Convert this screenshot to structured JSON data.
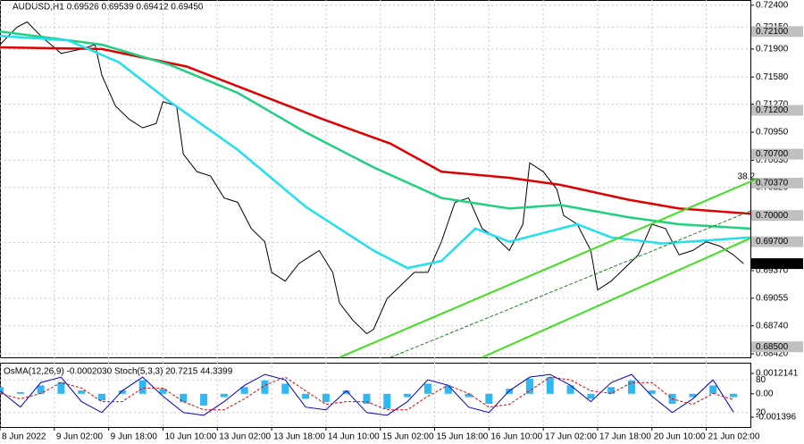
{
  "chart_data": [
    {
      "type": "line",
      "title": "AUDUSD,H1  0.69526 0.69539 0.69412 0.69450",
      "annotation": "38.2",
      "xlim": [
        0,
        221
      ],
      "ylim": [
        0.7246,
        0.6838
      ],
      "grid": true,
      "xticks": [
        {
          "value": 0,
          "label": "8 Jun 2022"
        },
        {
          "value": 16,
          "label": "9 Jun 02:00"
        },
        {
          "value": 32,
          "label": "9 Jun 18:00"
        },
        {
          "value": 48,
          "label": "10 Jun 10:00"
        },
        {
          "value": 64,
          "label": "13 Jun 02:00"
        },
        {
          "value": 80,
          "label": "13 Jun 18:00"
        },
        {
          "value": 96,
          "label": "14 Jun 10:00"
        },
        {
          "value": 112,
          "label": "15 Jun 02:00"
        },
        {
          "value": 128,
          "label": "15 Jun 18:00"
        },
        {
          "value": 144,
          "label": "16 Jun 10:00"
        },
        {
          "value": 160,
          "label": "17 Jun 02:00"
        },
        {
          "value": 176,
          "label": "17 Jun 18:00"
        },
        {
          "value": 192,
          "label": "20 Jun 10:00"
        },
        {
          "value": 208,
          "label": "21 Jun 02:00"
        }
      ],
      "yticks": [
        {
          "value": 0.724,
          "label": "0.72400"
        },
        {
          "value": 0.7215,
          "label": "0.72150"
        },
        {
          "value": 0.719,
          "label": "0.71900"
        },
        {
          "value": 0.7158,
          "label": "0.71580"
        },
        {
          "value": 0.7127,
          "label": "0.71270"
        },
        {
          "value": 0.7095,
          "label": "0.70950"
        },
        {
          "value": 0.7063,
          "label": "0.70630"
        },
        {
          "value": 0.7032,
          "label": "0.70320"
        },
        {
          "value": 0.6969,
          "label": "0.69690"
        },
        {
          "value": 0.6937,
          "label": "0.69370"
        },
        {
          "value": 0.69055,
          "label": "0.69055"
        },
        {
          "value": 0.6874,
          "label": "0.68740"
        },
        {
          "value": 0.6842,
          "label": "0.68420"
        }
      ],
      "levels": [
        {
          "value": 0.721,
          "label": "0.72100"
        },
        {
          "value": 0.712,
          "label": "0.71200"
        },
        {
          "value": 0.707,
          "label": "0.70700"
        },
        {
          "value": 0.7037,
          "label": "0.70370"
        },
        {
          "value": 0.7,
          "label": "0.70000"
        },
        {
          "value": 0.697,
          "label": "0.69700"
        },
        {
          "value": 0.685,
          "label": "0.68500"
        }
      ],
      "last_price": {
        "value": 0.6945,
        "label": "0.69450"
      },
      "series": [
        {
          "name": "AUDUSD",
          "color": "#000000",
          "x": [
            0,
            5,
            8,
            12,
            18,
            24,
            28,
            30,
            34,
            38,
            42,
            46,
            48,
            52,
            54,
            58,
            62,
            66,
            70,
            74,
            78,
            80,
            84,
            88,
            92,
            94,
            98,
            100,
            104,
            108,
            110,
            114,
            118,
            122,
            126,
            130,
            134,
            138,
            142,
            146,
            150,
            154,
            156,
            160,
            164,
            166,
            170,
            174,
            176,
            180,
            184,
            188,
            192,
            196,
            200,
            204,
            208,
            212,
            216,
            219
          ],
          "values": [
            0.7195,
            0.7215,
            0.7221,
            0.7205,
            0.7185,
            0.719,
            0.7195,
            0.716,
            0.7125,
            0.711,
            0.71,
            0.7105,
            0.713,
            0.7125,
            0.707,
            0.705,
            0.7045,
            0.702,
            0.7015,
            0.6985,
            0.697,
            0.6935,
            0.6925,
            0.6945,
            0.6955,
            0.696,
            0.6935,
            0.69,
            0.688,
            0.6865,
            0.687,
            0.6905,
            0.692,
            0.6935,
            0.6935,
            0.697,
            0.7015,
            0.702,
            0.6985,
            0.6975,
            0.696,
            0.699,
            0.706,
            0.705,
            0.703,
            0.7,
            0.699,
            0.696,
            0.6915,
            0.6925,
            0.694,
            0.6955,
            0.699,
            0.6985,
            0.6955,
            0.696,
            0.697,
            0.6965,
            0.6955,
            0.6945
          ]
        },
        {
          "name": "MA200",
          "color": "#e00000",
          "x": [
            0,
            30,
            55,
            75,
            95,
            115,
            130,
            150,
            165,
            185,
            200,
            221
          ],
          "values": [
            0.7192,
            0.719,
            0.717,
            0.714,
            0.711,
            0.7082,
            0.705,
            0.7043,
            0.7035,
            0.7018,
            0.7008,
            0.7002
          ]
        },
        {
          "name": "MA144",
          "color": "#20d080",
          "x": [
            0,
            30,
            50,
            70,
            90,
            110,
            130,
            150,
            165,
            185,
            200,
            221
          ],
          "values": [
            0.721,
            0.7195,
            0.7172,
            0.714,
            0.7095,
            0.7055,
            0.702,
            0.7008,
            0.7012,
            0.6998,
            0.699,
            0.6985
          ]
        },
        {
          "name": "MA50",
          "color": "#20e0f0",
          "x": [
            0,
            20,
            35,
            50,
            70,
            90,
            110,
            120,
            130,
            140,
            150,
            160,
            170,
            180,
            195,
            210,
            221
          ],
          "values": [
            0.7205,
            0.72,
            0.7175,
            0.713,
            0.7075,
            0.701,
            0.696,
            0.694,
            0.6948,
            0.6985,
            0.697,
            0.698,
            0.699,
            0.6975,
            0.6968,
            0.6972,
            0.6975
          ]
        },
        {
          "name": "channel-top",
          "color": "#40e020",
          "x": [
            100,
            223
          ],
          "values": [
            0.6838,
            0.7042
          ]
        },
        {
          "name": "channel-mid",
          "color": "#208020",
          "x": [
            115,
            221
          ],
          "values": [
            0.6838,
            0.7005
          ]
        },
        {
          "name": "channel-bottom",
          "color": "#40e020",
          "x": [
            142,
            221
          ],
          "values": [
            0.6838,
            0.6974
          ]
        }
      ]
    },
    {
      "type": "combo",
      "title": "OsMA(12,26,9) -0.0002030  Stoch(5,3,3) 20.7215 44.3399",
      "xlim": [
        0,
        221
      ],
      "ylim": [
        -0.001396,
        0.0012141
      ],
      "y2lim": [
        0,
        100
      ],
      "yticks": [
        {
          "value": 0.0012141,
          "label": "0.0012141"
        },
        {
          "value": 0,
          "label": "0.00"
        },
        {
          "value": -0.001396,
          "label": "-0.001396"
        }
      ],
      "y2ticks": [
        80,
        20
      ],
      "x": [
        0,
        6,
        12,
        18,
        24,
        30,
        36,
        42,
        48,
        54,
        60,
        66,
        72,
        78,
        84,
        90,
        96,
        102,
        108,
        114,
        120,
        126,
        132,
        138,
        144,
        150,
        156,
        162,
        168,
        174,
        180,
        186,
        192,
        198,
        204,
        210,
        216
      ],
      "series": [
        {
          "name": "OsMA",
          "color": "#30b8f0",
          "values": [
            0.0004,
            0.0001,
            0.0005,
            0.0007,
            0.0002,
            -0.0004,
            0.0002,
            0.0008,
            0.0003,
            -0.0005,
            -0.0007,
            -0.0002,
            0.0004,
            0.0008,
            0.0006,
            -0.0003,
            -0.0005,
            0.0002,
            -0.0006,
            -0.0009,
            -0.0002,
            0.0006,
            0.0005,
            -0.0002,
            -0.0006,
            0.0003,
            0.0009,
            0.001,
            0.0005,
            -0.0003,
            0.0004,
            0.0008,
            0.0002,
            -0.0006,
            -0.0002,
            0.0005,
            -0.0002
          ]
        },
        {
          "name": "Stoch",
          "color": "#0000d0",
          "axis": "y2",
          "values": [
            60,
            30,
            75,
            85,
            40,
            20,
            60,
            85,
            50,
            20,
            15,
            40,
            70,
            90,
            80,
            30,
            25,
            60,
            20,
            15,
            40,
            80,
            70,
            30,
            20,
            60,
            85,
            90,
            70,
            40,
            75,
            90,
            50,
            20,
            45,
            80,
            21
          ]
        },
        {
          "name": "Signal",
          "color": "#e00000",
          "axis": "y2",
          "values": [
            55,
            45,
            55,
            75,
            65,
            40,
            40,
            65,
            65,
            40,
            25,
            25,
            45,
            70,
            85,
            60,
            35,
            40,
            40,
            25,
            25,
            50,
            70,
            55,
            30,
            35,
            60,
            85,
            80,
            60,
            55,
            75,
            75,
            45,
            35,
            55,
            44
          ]
        }
      ]
    }
  ]
}
